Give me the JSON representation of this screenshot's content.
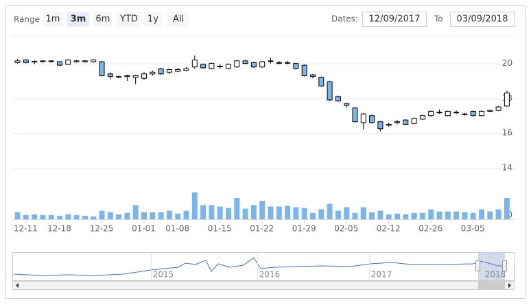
{
  "chart_data": {
    "type": "candlestick",
    "range_label": "Range",
    "range_buttons": [
      "1m",
      "3m",
      "6m",
      "YTD",
      "1y",
      "All"
    ],
    "selected_button": 1,
    "dates_label": "Dates:",
    "from_date": "12/09/2017",
    "to_label": "To",
    "to_date": "03/09/2018",
    "categories": [
      null,
      "12-11",
      null,
      null,
      null,
      "12-18",
      null,
      null,
      null,
      null,
      "12-25",
      null,
      null,
      null,
      null,
      "01-01",
      null,
      null,
      null,
      "01-08",
      null,
      null,
      null,
      null,
      "01-15",
      null,
      null,
      null,
      null,
      "01-22",
      null,
      null,
      null,
      null,
      "01-29",
      null,
      null,
      null,
      null,
      "02-05",
      null,
      null,
      null,
      null,
      "02-12",
      null,
      null,
      null,
      null,
      "02-26",
      null,
      null,
      null,
      null,
      "03-05",
      null,
      null,
      null,
      null
    ],
    "open": [
      20.05,
      20.2,
      20.1,
      20.12,
      20.15,
      20.1,
      19.95,
      20.1,
      20.1,
      20.1,
      20.1,
      19.4,
      19.25,
      19.3,
      19.2,
      19.15,
      19.4,
      19.7,
      19.5,
      19.55,
      19.6,
      19.8,
      19.95,
      19.7,
      19.85,
      19.7,
      19.8,
      20.15,
      20.05,
      19.8,
      20.15,
      20.05,
      20.05,
      20.0,
      19.9,
      19.35,
      19.2,
      18.95,
      18.1,
      17.7,
      17.45,
      16.6,
      17.0,
      16.65,
      16.45,
      16.6,
      16.75,
      16.55,
      16.8,
      17.0,
      17.2,
      17.0,
      17.2,
      17.1,
      17.25,
      17.0,
      17.25,
      17.3,
      17.55
    ],
    "high": [
      20.25,
      20.25,
      20.2,
      20.2,
      20.2,
      20.15,
      20.25,
      20.2,
      20.2,
      20.25,
      20.15,
      19.5,
      19.3,
      19.35,
      19.35,
      19.5,
      19.6,
      19.75,
      19.7,
      19.75,
      19.8,
      20.45,
      20.0,
      20.05,
      19.95,
      20.0,
      20.2,
      20.2,
      20.1,
      20.15,
      20.35,
      20.15,
      20.15,
      20.05,
      19.95,
      19.4,
      19.25,
      19.0,
      18.15,
      17.75,
      17.5,
      17.15,
      17.05,
      16.7,
      16.6,
      16.75,
      16.8,
      16.9,
      17.05,
      17.3,
      17.35,
      17.3,
      17.3,
      17.15,
      17.3,
      17.3,
      17.35,
      17.55,
      18.45
    ],
    "low": [
      20.0,
      20.0,
      19.95,
      20.05,
      20.05,
      19.85,
      19.9,
      20.05,
      20.05,
      20.05,
      19.25,
      19.1,
      19.15,
      19.0,
      18.8,
      19.05,
      19.3,
      19.35,
      19.4,
      19.5,
      19.55,
      19.7,
      19.7,
      19.65,
      19.7,
      19.65,
      19.75,
      19.95,
      19.75,
      19.75,
      20.0,
      19.95,
      19.95,
      19.65,
      19.25,
      19.15,
      18.65,
      17.85,
      17.8,
      17.45,
      16.6,
      16.2,
      16.55,
      16.1,
      16.35,
      16.5,
      16.45,
      16.5,
      16.75,
      16.95,
      17.1,
      16.95,
      17.1,
      17.0,
      16.95,
      16.95,
      17.2,
      17.25,
      17.5
    ],
    "close": [
      20.15,
      20.05,
      20.12,
      20.15,
      20.12,
      19.9,
      20.2,
      20.15,
      20.15,
      20.2,
      19.3,
      19.25,
      19.25,
      19.25,
      19.3,
      19.4,
      19.5,
      19.4,
      19.65,
      19.65,
      19.7,
      20.2,
      19.75,
      20.0,
      19.85,
      19.95,
      20.15,
      20.0,
      19.8,
      20.1,
      20.15,
      20.0,
      20.05,
      19.7,
      19.3,
      19.25,
      18.7,
      17.9,
      17.85,
      17.6,
      16.65,
      17.1,
      16.6,
      16.25,
      16.5,
      16.65,
      16.5,
      16.85,
      17.0,
      17.25,
      17.2,
      17.25,
      17.2,
      17.1,
      17.0,
      17.25,
      17.3,
      17.5,
      18.3
    ],
    "volume": [
      10,
      6,
      7,
      6,
      6,
      5,
      7,
      6,
      5,
      4,
      12,
      10,
      7,
      9,
      20,
      10,
      10,
      10,
      12,
      8,
      12,
      38,
      20,
      20,
      18,
      16,
      30,
      15,
      20,
      26,
      18,
      18,
      19,
      17,
      16,
      9,
      14,
      22,
      12,
      17,
      9,
      17,
      10,
      12,
      7,
      8,
      7,
      9,
      9,
      14,
      11,
      11,
      11,
      10,
      9,
      14,
      11,
      14,
      30
    ],
    "up_color": "#ffffff",
    "down_color": "#7cb5ec",
    "line_color": "#000000",
    "ylim": [
      13.8,
      21.6
    ],
    "yticks": [
      14,
      16,
      18,
      20
    ],
    "volume_ylim": [
      0,
      58
    ],
    "volume_yticks": [
      0
    ],
    "volume_color": "#7cb5ec",
    "grid": true,
    "navigator_labels": [
      "2015",
      "2016",
      "2017",
      "2018"
    ]
  }
}
